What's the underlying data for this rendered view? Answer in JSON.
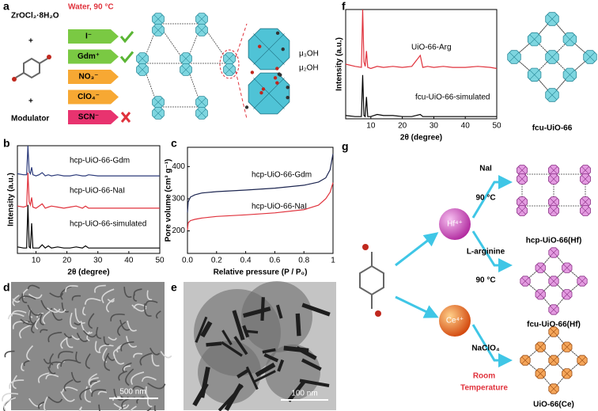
{
  "panels": {
    "a": {
      "label": "a",
      "reagent": "ZrOCl₂·8H₂O",
      "condition": "Water, 90 °C",
      "plus": "+",
      "modulator": "Modulator",
      "ions": [
        "I⁻",
        "Gdm⁺",
        "NO₃⁻",
        "ClO₄⁻",
        "SCN⁻"
      ],
      "mu3": "μ₃OH",
      "mu2": "μ₂OH"
    },
    "b": {
      "label": "b"
    },
    "c": {
      "label": "c"
    },
    "d": {
      "label": "d",
      "scale": "500 nm"
    },
    "e": {
      "label": "e",
      "scale": "100 nm"
    },
    "f": {
      "label": "f",
      "structure": "fcu-UiO-66"
    },
    "g": {
      "label": "g",
      "hf": "Hf⁴⁺",
      "ce": "Ce⁴⁺",
      "r1": "NaI",
      "t1": "90 °C",
      "r2": "L-arginine",
      "t2": "90 °C",
      "r3": "NaClO₄",
      "t3a": "Room",
      "t3b": "Temperature",
      "p1": "hcp-UiO-66(Hf)",
      "p2": "fcu-UiO-66(Hf)",
      "p3": "UiO-66(Ce)"
    }
  },
  "chart_data": [
    {
      "type": "line",
      "xlabel": "2θ (degree)",
      "ylabel": "Intensity (a.u.)",
      "xlim": [
        4,
        50
      ],
      "ylim": [
        0,
        100
      ],
      "xticks": [
        10,
        20,
        30,
        40,
        50
      ],
      "x": [
        4,
        6,
        7,
        7.4,
        7.8,
        8.2,
        8.6,
        9,
        10,
        11,
        12,
        13,
        14,
        15,
        17,
        19,
        21,
        23,
        25,
        26,
        27,
        30,
        33,
        36,
        40,
        44,
        48,
        50
      ],
      "series": [
        {
          "name": "hcp-UiO-66-Gdm",
          "color": "#2b3a7a",
          "values": [
            74,
            73,
            73,
            100,
            76,
            74,
            80,
            73,
            72,
            73,
            75,
            72,
            73,
            72,
            73,
            72,
            72,
            73,
            72,
            72,
            73,
            72,
            72,
            72,
            72,
            72,
            72,
            72
          ]
        },
        {
          "name": "hcp-UiO-66-NaI",
          "color": "#e0323c",
          "values": [
            44,
            43,
            44,
            75,
            48,
            45,
            52,
            43,
            42,
            44,
            46,
            42,
            43,
            44,
            43,
            42,
            43,
            44,
            42,
            44,
            42,
            42,
            42,
            42,
            42,
            42,
            42,
            42
          ]
        },
        {
          "name": "hcp-UiO-66-simulated",
          "color": "#000000",
          "values": [
            6,
            5,
            5,
            45,
            6,
            5,
            28,
            5,
            5,
            5,
            8,
            5,
            7,
            5,
            6,
            5,
            5,
            6,
            5,
            7,
            5,
            5,
            5,
            5,
            5,
            5,
            5,
            5
          ]
        }
      ]
    },
    {
      "type": "line",
      "xlabel": "Relative pressure (P / P₀)",
      "ylabel": "Pore volume (cm³ g⁻¹)",
      "xlim": [
        0,
        1
      ],
      "ylim": [
        130,
        460
      ],
      "xticks": [
        {
          "value": 0,
          "label": "0.0"
        },
        {
          "value": 0.2,
          "label": "0.2"
        },
        {
          "value": 0.4,
          "label": "0.4"
        },
        {
          "value": 0.6,
          "label": "0.6"
        },
        {
          "value": 0.8,
          "label": "0.8"
        },
        1
      ],
      "yticks": [
        200,
        300,
        400
      ],
      "x": [
        0,
        0.005,
        0.02,
        0.05,
        0.1,
        0.2,
        0.4,
        0.6,
        0.8,
        0.9,
        0.95,
        0.98,
        1
      ],
      "series": [
        {
          "name": "hcp-UiO-66-Gdm",
          "color": "#1c2550",
          "values": [
            257,
            290,
            305,
            312,
            318,
            322,
            327,
            333,
            342,
            352,
            365,
            390,
            440
          ]
        },
        {
          "name": "hcp-UiO-66-NaI",
          "color": "#e0323c",
          "values": [
            203,
            225,
            232,
            236,
            240,
            245,
            250,
            256,
            266,
            280,
            300,
            320,
            350
          ]
        }
      ]
    },
    {
      "type": "line",
      "xlabel": "2θ (degree)",
      "ylabel": "Intensity (a.u.)",
      "xlim": [
        2,
        50
      ],
      "ylim": [
        0,
        100
      ],
      "xticks": [
        10,
        20,
        30,
        40,
        50
      ],
      "x": [
        2,
        5,
        7,
        7.4,
        7.8,
        8.2,
        8.6,
        9,
        10,
        12,
        14,
        17,
        20,
        23,
        25.7,
        26.5,
        28,
        30,
        33,
        36,
        40,
        44,
        48,
        50
      ],
      "series": [
        {
          "name": "UiO-66-Arg",
          "color": "#e0323c",
          "values": [
            50,
            48,
            47,
            100,
            52,
            48,
            62,
            47,
            46,
            48,
            47,
            48,
            47,
            48,
            58,
            47,
            48,
            47,
            48,
            47,
            47,
            48,
            47,
            46
          ]
        },
        {
          "name": "fcu-UiO-66-simulated",
          "color": "#000000",
          "values": [
            3,
            2,
            2,
            40,
            3,
            2,
            20,
            2,
            2,
            4,
            3,
            3,
            2,
            2,
            4,
            2,
            2,
            2,
            2,
            2,
            2,
            2,
            2,
            2
          ]
        }
      ]
    }
  ]
}
